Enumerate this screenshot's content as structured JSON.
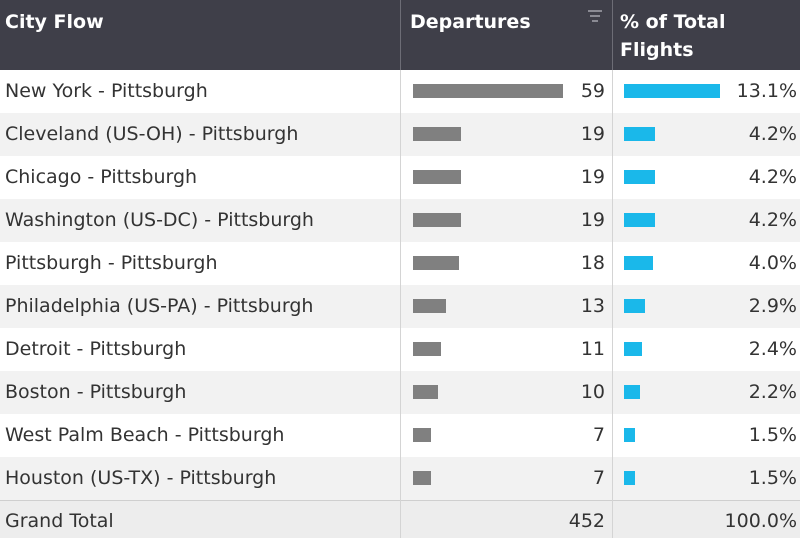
{
  "header": {
    "city_flow": "City Flow",
    "departures": "Departures",
    "pct_line1": "% of Total",
    "pct_line2": "Flights"
  },
  "rows": [
    {
      "city": "New York - Pittsburgh",
      "departures": "59",
      "pct": "13.1%",
      "dep_value": 59,
      "pct_value": 13.1
    },
    {
      "city": "Cleveland (US-OH) - Pittsburgh",
      "departures": "19",
      "pct": "4.2%",
      "dep_value": 19,
      "pct_value": 4.2
    },
    {
      "city": "Chicago - Pittsburgh",
      "departures": "19",
      "pct": "4.2%",
      "dep_value": 19,
      "pct_value": 4.2
    },
    {
      "city": "Washington (US-DC) - Pittsburgh",
      "departures": "19",
      "pct": "4.2%",
      "dep_value": 19,
      "pct_value": 4.2
    },
    {
      "city": "Pittsburgh - Pittsburgh",
      "departures": "18",
      "pct": "4.0%",
      "dep_value": 18,
      "pct_value": 4.0
    },
    {
      "city": "Philadelphia (US-PA) - Pittsburgh",
      "departures": "13",
      "pct": "2.9%",
      "dep_value": 13,
      "pct_value": 2.9
    },
    {
      "city": "Detroit - Pittsburgh",
      "departures": "11",
      "pct": "2.4%",
      "dep_value": 11,
      "pct_value": 2.4
    },
    {
      "city": "Boston - Pittsburgh",
      "departures": "10",
      "pct": "2.2%",
      "dep_value": 10,
      "pct_value": 2.2
    },
    {
      "city": "West Palm Beach - Pittsburgh",
      "departures": "7",
      "pct": "1.5%",
      "dep_value": 7,
      "pct_value": 1.5
    },
    {
      "city": "Houston (US-TX) - Pittsburgh",
      "departures": "7",
      "pct": "1.5%",
      "dep_value": 7,
      "pct_value": 1.5
    }
  ],
  "total": {
    "label": "Grand Total",
    "departures": "452",
    "pct": "100.0%"
  },
  "colors": {
    "header_bg": "#3f3f49",
    "departures_bar": "#808080",
    "pct_bar": "#1ab8ea"
  },
  "icons": {
    "sort": "sort-icon"
  }
}
